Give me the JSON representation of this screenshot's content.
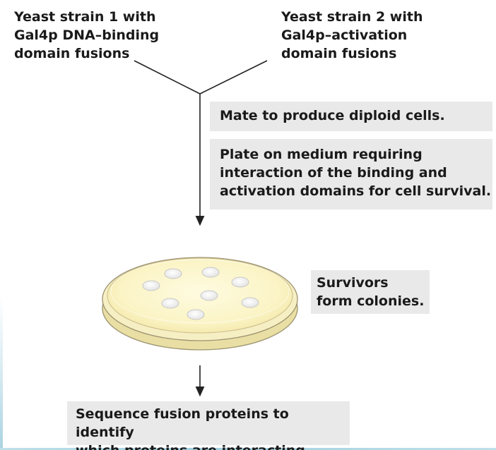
{
  "strain1": {
    "text": "Yeast strain 1 with\nGal4p DNA–binding\ndomain fusions"
  },
  "strain2": {
    "text": "Yeast strain 2 with\nGal4p–activation\ndomain fusions"
  },
  "step_mate": {
    "text": "Mate to produce diploid cells."
  },
  "step_plate": {
    "text": "Plate on medium requiring\ninteraction of the binding and\nactivation domains for cell survival."
  },
  "survivors": {
    "text": "Survivors\nform colonies."
  },
  "step_sequence": {
    "text": "Sequence fusion proteins to identify\nwhich proteins are interacting."
  },
  "colors": {
    "box_background": "#e9e9e9",
    "plate_medium": "#fbf6cf",
    "plate_rim": "#f3e8b0",
    "colony": "#ffffff",
    "arrow": "#222222"
  },
  "icons": {
    "petri_dish": "petri-dish-icon",
    "colony": "colony-icon"
  }
}
